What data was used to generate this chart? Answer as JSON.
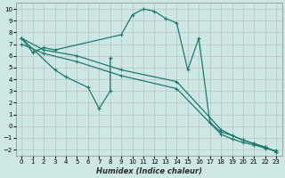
{
  "xlabel": "Humidex (Indice chaleur)",
  "background_color": "#cde8e4",
  "line_color": "#1a7a6e",
  "xlim": [
    -0.5,
    23.5
  ],
  "ylim": [
    -2.5,
    10.5
  ],
  "xticks": [
    0,
    1,
    2,
    3,
    4,
    5,
    6,
    7,
    8,
    9,
    10,
    11,
    12,
    13,
    14,
    15,
    16,
    17,
    18,
    19,
    20,
    21,
    22,
    23
  ],
  "yticks": [
    -2,
    -1,
    0,
    1,
    2,
    3,
    4,
    5,
    6,
    7,
    8,
    9,
    10
  ],
  "curve1_x": [
    0,
    1,
    2,
    3,
    9,
    10,
    11,
    12,
    13,
    14,
    15,
    16,
    17,
    18,
    19,
    20,
    21,
    22,
    23
  ],
  "curve1_y": [
    7.5,
    6.3,
    6.7,
    6.5,
    7.8,
    9.5,
    10.0,
    9.8,
    9.2,
    8.8,
    4.8,
    7.5,
    0.3,
    -0.5,
    -0.8,
    -1.2,
    -1.5,
    -1.8,
    -2.2
  ],
  "curve2_x": [
    0,
    3,
    4,
    6,
    7,
    8,
    8
  ],
  "curve2_y": [
    7.5,
    4.8,
    4.2,
    3.3,
    1.5,
    3.0,
    5.8
  ],
  "diag1_x": [
    0,
    2,
    5,
    9,
    14,
    18,
    19,
    20,
    21,
    22,
    23
  ],
  "diag1_y": [
    7.5,
    6.5,
    6.0,
    4.8,
    3.8,
    -0.3,
    -0.8,
    -1.2,
    -1.5,
    -1.8,
    -2.2
  ],
  "diag2_x": [
    0,
    2,
    5,
    9,
    14,
    18,
    19,
    20,
    21,
    22,
    23
  ],
  "diag2_y": [
    7.0,
    6.2,
    5.5,
    4.3,
    3.2,
    -0.7,
    -1.1,
    -1.4,
    -1.6,
    -1.9,
    -2.1
  ]
}
